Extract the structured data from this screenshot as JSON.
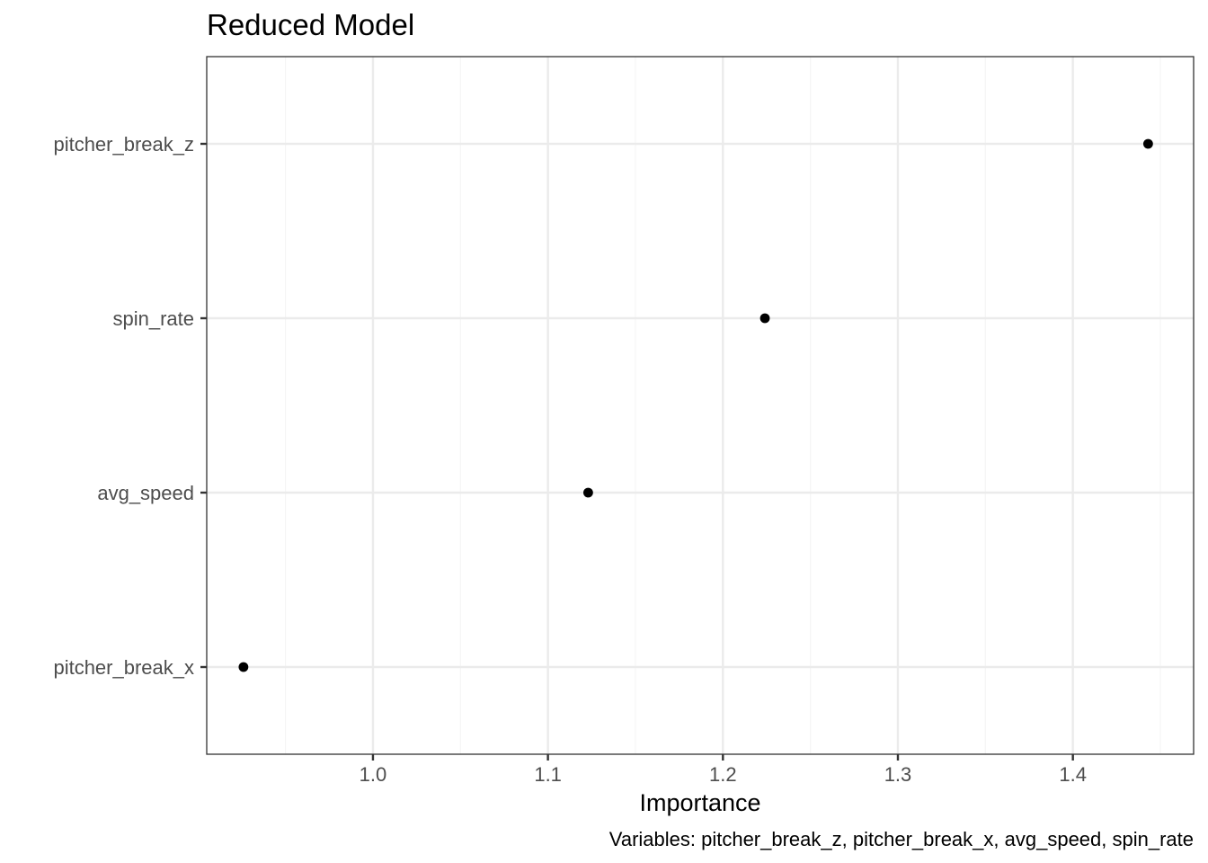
{
  "chart_data": {
    "type": "scatter",
    "title": "Reduced Model",
    "xlabel": "Importance",
    "ylabel": "",
    "caption": "Variables: pitcher_break_z, pitcher_break_x, avg_speed, spin_rate",
    "categories": [
      "pitcher_break_x",
      "avg_speed",
      "spin_rate",
      "pitcher_break_z"
    ],
    "values": [
      0.926,
      1.123,
      1.224,
      1.443
    ],
    "xlim": [
      0.905,
      1.469
    ],
    "x_ticks": [
      1.0,
      1.1,
      1.2,
      1.3,
      1.4
    ],
    "x_tick_labels": [
      "1.0",
      "1.1",
      "1.2",
      "1.3",
      "1.4"
    ],
    "x_minor_ticks": [
      0.95,
      1.05,
      1.15,
      1.25,
      1.35,
      1.45
    ],
    "grid": true,
    "legend": "none",
    "colors": {
      "point": "#000000",
      "grid_major": "#ebebeb",
      "grid_minor": "#f5f5f5",
      "panel_border": "#333333",
      "tick_label": "#4d4d4d",
      "tick_mark": "#333333"
    }
  }
}
